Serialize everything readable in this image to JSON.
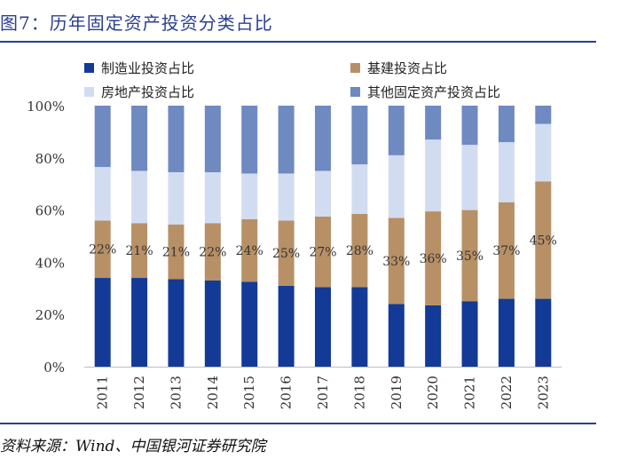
{
  "header": {
    "title": "图7：历年固定资产投资分类占比"
  },
  "footer": {
    "source": "资料来源：Wind、中国银河证券研究院"
  },
  "colors": {
    "manufacturing": "#123a96",
    "infrastructure": "#b79066",
    "real_estate": "#d2dcf1",
    "other": "#6f89c1",
    "title": "#2b3f8f"
  },
  "chart_data": {
    "type": "bar",
    "stacked": true,
    "title": "历年固定资产投资分类占比",
    "xlabel": "",
    "ylabel": "",
    "ylim": [
      0,
      100
    ],
    "yticks": [
      "0%",
      "20%",
      "40%",
      "60%",
      "80%",
      "100%"
    ],
    "categories": [
      "2011",
      "2012",
      "2013",
      "2014",
      "2015",
      "2016",
      "2017",
      "2018",
      "2019",
      "2020",
      "2021",
      "2022",
      "2023"
    ],
    "legend": [
      {
        "key": "manufacturing",
        "label": "制造业投资占比"
      },
      {
        "key": "infrastructure",
        "label": "基建投资占比"
      },
      {
        "key": "real_estate",
        "label": "房地产投资占比"
      },
      {
        "key": "other",
        "label": "其他固定资产投资占比"
      }
    ],
    "series": [
      {
        "key": "manufacturing",
        "name": "制造业投资占比",
        "values": [
          34,
          34,
          33.5,
          33,
          32.5,
          31,
          30.5,
          30.5,
          24,
          23.5,
          25,
          26,
          26
        ]
      },
      {
        "key": "infrastructure",
        "name": "基建投资占比",
        "values": [
          22,
          21,
          21,
          22,
          24,
          25,
          27,
          28,
          33,
          36,
          35,
          37,
          45
        ]
      },
      {
        "key": "real_estate",
        "name": "房地产投资占比",
        "values": [
          20.5,
          20,
          20,
          19.5,
          17.5,
          18,
          17.5,
          19,
          24,
          27.5,
          25,
          23,
          22
        ]
      },
      {
        "key": "other",
        "name": "其他固定资产投资占比",
        "values": [
          23.5,
          25,
          25.5,
          25.5,
          26,
          26,
          25,
          22.5,
          19,
          13,
          15,
          14,
          7
        ]
      }
    ],
    "data_labels": [
      "22%",
      "21%",
      "21%",
      "22%",
      "24%",
      "25%",
      "27%",
      "28%",
      "33%",
      "36%",
      "35%",
      "37%",
      "45%"
    ]
  }
}
